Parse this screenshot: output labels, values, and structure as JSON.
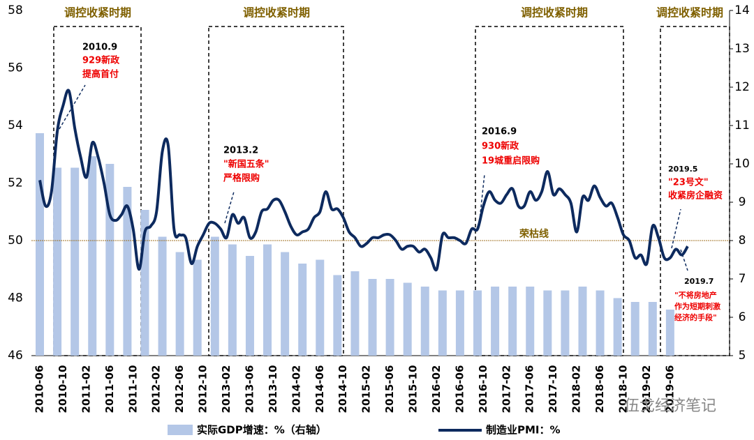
{
  "chart_data": {
    "type": "bar_line",
    "categories": [
      "2010-06",
      null,
      null,
      null,
      "2010-10",
      null,
      null,
      null,
      "2011-02",
      null,
      null,
      null,
      "2011-06",
      null,
      null,
      null,
      "2011-10",
      null,
      null,
      null,
      "2012-02",
      null,
      null,
      null,
      "2012-06",
      null,
      null,
      null,
      "2012-10",
      null,
      null,
      null,
      "2013-02",
      null,
      null,
      null,
      "2013-06",
      null,
      null,
      null,
      "2013-10",
      null,
      null,
      null,
      "2014-02",
      null,
      null,
      null,
      "2014-06",
      null,
      null,
      null,
      "2014-10",
      null,
      null,
      null,
      "2015-02",
      null,
      null,
      null,
      "2015-06",
      null,
      null,
      null,
      "2015-10",
      null,
      null,
      null,
      "2016-02",
      null,
      null,
      null,
      "2016-06",
      null,
      null,
      null,
      "2016-10",
      null,
      null,
      null,
      "2017-02",
      null,
      null,
      null,
      "2017-06",
      null,
      null,
      null,
      "2017-10",
      null,
      null,
      null,
      "2018-02",
      null,
      null,
      null,
      "2018-06",
      null,
      null,
      null,
      "2018-10",
      null,
      null,
      null,
      "2019-02",
      null,
      null,
      null,
      "2019-06",
      null,
      null,
      null
    ],
    "series": [
      {
        "name": "实际GDP增速：%（右轴）",
        "type": "bar",
        "axis": "y2",
        "color": "#b4c7e7",
        "values": [
          10.8,
          null,
          null,
          9.9,
          null,
          null,
          9.9,
          null,
          null,
          10.2,
          null,
          null,
          10.0,
          null,
          null,
          9.4,
          null,
          null,
          8.8,
          null,
          null,
          8.1,
          null,
          null,
          7.7,
          null,
          null,
          7.5,
          null,
          null,
          8.1,
          null,
          null,
          7.9,
          null,
          null,
          7.6,
          null,
          null,
          7.9,
          null,
          null,
          7.7,
          null,
          null,
          7.4,
          null,
          null,
          7.5,
          null,
          null,
          7.1,
          null,
          null,
          7.2,
          null,
          null,
          7.0,
          null,
          null,
          7.0,
          null,
          null,
          6.9,
          null,
          null,
          6.8,
          null,
          null,
          6.7,
          null,
          null,
          6.7,
          null,
          null,
          6.7,
          null,
          null,
          6.8,
          null,
          null,
          6.8,
          null,
          null,
          6.8,
          null,
          null,
          6.7,
          null,
          null,
          6.7,
          null,
          null,
          6.8,
          null,
          null,
          6.7,
          null,
          null,
          6.5,
          null,
          null,
          6.4,
          null,
          null,
          6.4,
          null,
          null,
          6.2,
          null,
          null,
          null
        ]
      },
      {
        "name": "制造业PMI：%",
        "type": "line",
        "color": "#0d2a5e",
        "values": [
          52.1,
          51.2,
          51.7,
          53.8,
          54.7,
          55.2,
          53.9,
          52.9,
          52.2,
          53.4,
          52.9,
          52.0,
          50.9,
          50.7,
          50.9,
          51.2,
          50.4,
          49.0,
          50.3,
          50.5,
          51.0,
          53.1,
          53.3,
          50.4,
          50.2,
          50.1,
          49.2,
          49.8,
          50.2,
          50.6,
          50.6,
          50.4,
          50.1,
          50.9,
          50.6,
          50.8,
          50.1,
          50.3,
          51.0,
          51.1,
          51.4,
          51.4,
          51.0,
          50.5,
          50.2,
          50.3,
          50.4,
          50.8,
          51.0,
          51.7,
          51.1,
          51.1,
          50.8,
          50.3,
          50.1,
          49.8,
          49.9,
          50.1,
          50.1,
          50.2,
          50.2,
          50.0,
          49.7,
          49.8,
          49.8,
          49.6,
          49.7,
          49.4,
          49.0,
          50.2,
          50.1,
          50.1,
          50.0,
          49.9,
          50.4,
          50.4,
          51.2,
          51.7,
          51.4,
          51.3,
          51.6,
          51.8,
          51.2,
          51.2,
          51.7,
          51.4,
          51.7,
          52.4,
          51.6,
          51.8,
          51.6,
          51.3,
          50.3,
          51.5,
          51.4,
          51.9,
          51.5,
          51.2,
          51.3,
          50.8,
          50.2,
          50.0,
          49.4,
          49.5,
          49.2,
          50.5,
          50.1,
          49.4,
          49.4,
          49.7,
          49.5,
          49.8
        ]
      }
    ],
    "ylim": [
      46,
      58
    ],
    "yticks": [
      46,
      48,
      50,
      52,
      54,
      56,
      58
    ],
    "y2lim": [
      5,
      14
    ],
    "y2ticks": [
      5,
      6,
      7,
      8,
      9,
      10,
      11,
      12,
      13,
      14
    ],
    "reference_line": {
      "value": 50,
      "label": "荣枯线"
    },
    "periods": [
      "调控收紧时期",
      "调控收紧时期",
      "调控收紧时期",
      "调控收紧时期"
    ],
    "annotations": [
      [
        "2010.9",
        "929新政",
        "提高首付"
      ],
      [
        "2013.2",
        "\"新国五条\"",
        "严格限购"
      ],
      [
        "2016.9",
        "930新政",
        "19城重启限购"
      ],
      [
        "2019.5",
        "\"23号文\"",
        "收紧房企融资"
      ],
      [
        "2019.7",
        "\"不将房地产",
        "作为短期刺激",
        "经济的手段\""
      ]
    ],
    "watermark": "伍戈经济笔记"
  }
}
